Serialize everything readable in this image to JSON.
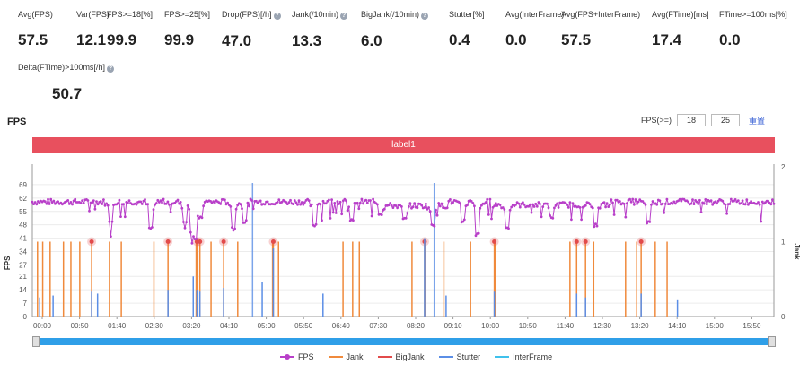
{
  "stats": [
    {
      "label": "Avg(FPS)",
      "value": "57.5",
      "help": false
    },
    {
      "label": "Var(FPS)",
      "value": "12.1",
      "help": false
    },
    {
      "label": "FPS>=18[%]",
      "value": "99.9",
      "help": false
    },
    {
      "label": "FPS>=25[%]",
      "value": "99.9",
      "help": false
    },
    {
      "label": "Drop(FPS)[/h]",
      "value": "47.0",
      "help": true
    },
    {
      "label": "Jank(/10min)",
      "value": "13.3",
      "help": true
    },
    {
      "label": "BigJank(/10min)",
      "value": "6.0",
      "help": true
    },
    {
      "label": "Stutter[%]",
      "value": "0.4",
      "help": false
    },
    {
      "label": "Avg(InterFrame)",
      "value": "0.0",
      "help": false
    },
    {
      "label": "Avg(FPS+InterFrame)",
      "value": "57.5",
      "help": false
    },
    {
      "label": "Avg(FTime)[ms]",
      "value": "17.4",
      "help": false
    },
    {
      "label": "FTime>=100ms[%]",
      "value": "0.0",
      "help": false
    },
    {
      "label": "Delta(FTime)>100ms[/h]",
      "value": "50.7",
      "help": true
    }
  ],
  "section_title": "FPS",
  "fps_threshold": {
    "label": "FPS(>=)",
    "value1": "18",
    "value2": "25",
    "reset_label": "重置"
  },
  "label_bar": "label1",
  "legend": [
    {
      "name": "FPS",
      "color": "#b83fc9"
    },
    {
      "name": "Jank",
      "color": "#f08a3c"
    },
    {
      "name": "BigJank",
      "color": "#e24b4b"
    },
    {
      "name": "Stutter",
      "color": "#5b8ee6"
    },
    {
      "name": "InterFrame",
      "color": "#3fc1ec"
    }
  ],
  "chart_data": {
    "type": "line",
    "ylabel": "FPS",
    "y2label": "Jank",
    "y_ticks": [
      0,
      7,
      14,
      21,
      27,
      34,
      41,
      48,
      55,
      62,
      69
    ],
    "y2_ticks": [
      0,
      1,
      2
    ],
    "x_ticks": [
      "00:00",
      "00:50",
      "01:40",
      "02:30",
      "03:20",
      "04:10",
      "05:00",
      "05:50",
      "06:40",
      "07:30",
      "08:20",
      "09:10",
      "10:00",
      "10:50",
      "11:40",
      "12:30",
      "13:20",
      "14:10",
      "15:00",
      "15:50"
    ],
    "x_range_seconds": [
      0,
      1000
    ],
    "fps_baseline": 60,
    "fps_dips": [
      {
        "t": 105,
        "fps": 49
      },
      {
        "t": 160,
        "fps": 46
      },
      {
        "t": 205,
        "fps": 50
      },
      {
        "t": 215,
        "fps": 45
      },
      {
        "t": 222,
        "fps": 41
      },
      {
        "t": 226,
        "fps": 52
      },
      {
        "t": 272,
        "fps": 46
      },
      {
        "t": 286,
        "fps": 50
      },
      {
        "t": 380,
        "fps": 48
      },
      {
        "t": 430,
        "fps": 50
      },
      {
        "t": 470,
        "fps": 54
      },
      {
        "t": 502,
        "fps": 51
      },
      {
        "t": 540,
        "fps": 48
      },
      {
        "t": 580,
        "fps": 50
      },
      {
        "t": 600,
        "fps": 43
      },
      {
        "t": 640,
        "fps": 47
      },
      {
        "t": 700,
        "fps": 52
      },
      {
        "t": 760,
        "fps": 48
      },
      {
        "t": 830,
        "fps": 49
      }
    ],
    "jank_times": [
      7,
      14,
      24,
      42,
      52,
      64,
      104,
      120,
      164,
      221,
      241,
      277,
      324,
      332,
      419,
      432,
      441,
      512,
      530,
      555,
      591,
      624,
      725,
      757,
      800,
      815,
      840,
      856
    ],
    "bigjank_times": [
      80,
      183,
      222,
      226,
      258,
      325,
      529,
      623,
      734,
      746,
      821
    ],
    "stutter_times": [
      10,
      28,
      80,
      88,
      183,
      217,
      222,
      226,
      258,
      310,
      325,
      392,
      529,
      558,
      623,
      734,
      746,
      821,
      870
    ],
    "stutter_fps": [
      10,
      11,
      13,
      12,
      14,
      21,
      14,
      13,
      15,
      18,
      36,
      12,
      41,
      11,
      13,
      12,
      10,
      12,
      9
    ]
  }
}
